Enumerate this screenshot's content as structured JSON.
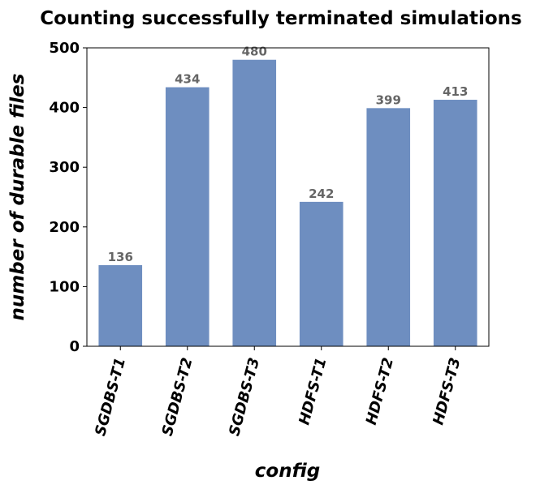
{
  "chart_data": {
    "type": "bar",
    "title": "Counting successfully terminated simulations",
    "xlabel": "config",
    "ylabel": "number of durable files",
    "categories": [
      "SGDBS-T1",
      "SGDBS-T2",
      "SGDBS-T3",
      "HDFS-T1",
      "HDFS-T2",
      "HDFS-T3"
    ],
    "values": [
      136,
      434,
      480,
      242,
      399,
      413
    ],
    "data_labels": [
      "136",
      "434",
      "480",
      "242",
      "399",
      "413"
    ],
    "ylim": [
      0,
      500
    ],
    "yticks": [
      0,
      100,
      200,
      300,
      400,
      500
    ],
    "ytick_labels": [
      "0",
      "100",
      "200",
      "300",
      "400",
      "500"
    ],
    "grid": false,
    "colors": {
      "bar": "#6e8ec0",
      "value_label": "#666666",
      "axis": "#000000"
    }
  }
}
